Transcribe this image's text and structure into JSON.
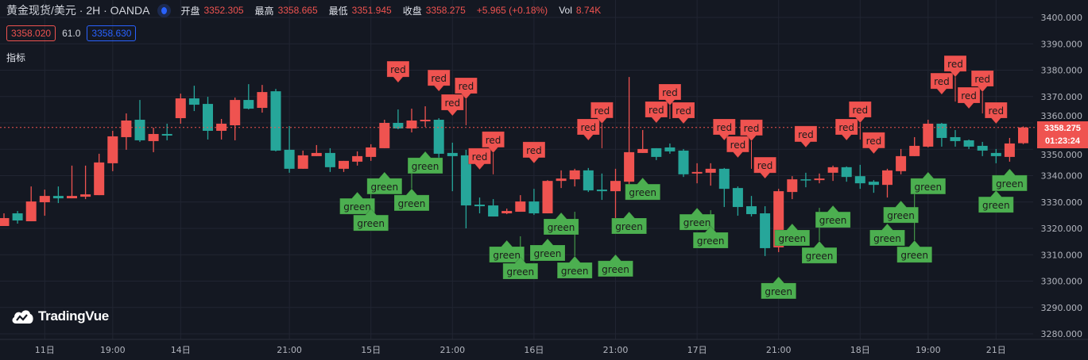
{
  "header": {
    "title": "黄金现货/美元 · 2H · OANDA",
    "open_label": "开盘",
    "open_value": "3352.305",
    "high_label": "最高",
    "high_value": "3358.665",
    "low_label": "最低",
    "low_value": "3351.945",
    "close_label": "收盘",
    "close_value": "3358.275",
    "change": "+5.965 (+0.18%)",
    "vol_label": "Vol",
    "vol_value": "8.74K"
  },
  "quote": {
    "bid": "3358.020",
    "spread": "61.0",
    "ask": "3358.630"
  },
  "indicators_label": "指标",
  "logo_text": "TradingVue",
  "price_tag": {
    "price": "3358.275",
    "countdown": "01:23:24"
  },
  "colors": {
    "up": "#ef5350",
    "down": "#26a69a",
    "buy_marker": "#4caf50",
    "sell_marker": "#ef5350",
    "background": "#141822",
    "grid": "#212532"
  },
  "chart_data": {
    "type": "candlestick",
    "title": "黄金现货/美元 · 2H · OANDA",
    "ylim": [
      3280,
      3400
    ],
    "y_ticks": [
      "3400.000",
      "3390.000",
      "3380.000",
      "3370.000",
      "3360.000",
      "3350.000",
      "3340.000",
      "3330.000",
      "3320.000",
      "3310.000",
      "3300.000",
      "3290.000",
      "3280.000"
    ],
    "y_tick_values": [
      3400,
      3390,
      3380,
      3370,
      3360,
      3350,
      3340,
      3330,
      3320,
      3310,
      3300,
      3290,
      3280
    ],
    "x_ticks": [
      {
        "index": 3,
        "label": "11日"
      },
      {
        "index": 8,
        "label": "19:00"
      },
      {
        "index": 13,
        "label": "14日"
      },
      {
        "index": 21,
        "label": "21:00"
      },
      {
        "index": 27,
        "label": "15日"
      },
      {
        "index": 33,
        "label": "21:00"
      },
      {
        "index": 39,
        "label": "16日"
      },
      {
        "index": 45,
        "label": "21:00"
      },
      {
        "index": 51,
        "label": "17日"
      },
      {
        "index": 57,
        "label": "21:00"
      },
      {
        "index": 63,
        "label": "18日"
      },
      {
        "index": 68,
        "label": "19:00"
      },
      {
        "index": 73,
        "label": "21日"
      }
    ],
    "last_price": 3358.275,
    "candles_ohlc": [
      [
        3320.9,
        3325.7,
        3320.9,
        3323.9
      ],
      [
        3325.7,
        3326.6,
        3321.8,
        3323.0
      ],
      [
        3322.7,
        3335.9,
        3322.7,
        3330.2
      ],
      [
        3329.9,
        3334.7,
        3324.8,
        3332.3
      ],
      [
        3332.3,
        3335.9,
        3329.6,
        3331.4
      ],
      [
        3331.4,
        3343.8,
        3331.4,
        3332.3
      ],
      [
        3332.0,
        3343.8,
        3331.1,
        3332.9
      ],
      [
        3332.6,
        3348.3,
        3332.6,
        3345.0
      ],
      [
        3344.7,
        3357.0,
        3341.7,
        3354.9
      ],
      [
        3354.6,
        3363.6,
        3349.8,
        3360.9
      ],
      [
        3361.2,
        3368.7,
        3352.8,
        3353.4
      ],
      [
        3353.1,
        3358.2,
        3348.9,
        3355.8
      ],
      [
        3355.8,
        3359.7,
        3353.4,
        3355.2
      ],
      [
        3361.8,
        3371.1,
        3359.7,
        3369.3
      ],
      [
        3369.3,
        3374.1,
        3364.5,
        3366.9
      ],
      [
        3367.2,
        3369.9,
        3353.7,
        3357.0
      ],
      [
        3357.0,
        3361.5,
        3353.7,
        3359.7
      ],
      [
        3359.1,
        3369.6,
        3353.4,
        3368.7
      ],
      [
        3368.7,
        3374.7,
        3365.1,
        3365.4
      ],
      [
        3365.7,
        3374.4,
        3363.9,
        3371.7
      ],
      [
        3372.0,
        3372.9,
        3349.2,
        3349.5
      ],
      [
        3349.8,
        3358.8,
        3341.1,
        3342.6
      ],
      [
        3342.6,
        3349.5,
        3342.6,
        3347.7
      ],
      [
        3347.4,
        3351.6,
        3347.4,
        3348.6
      ],
      [
        3348.6,
        3350.4,
        3341.4,
        3343.2
      ],
      [
        3342.6,
        3345.6,
        3341.4,
        3345.6
      ],
      [
        3345.3,
        3349.2,
        3343.8,
        3347.4
      ],
      [
        3347.1,
        3351.9,
        3345.6,
        3350.7
      ],
      [
        3350.4,
        3361.2,
        3350.4,
        3360.0
      ],
      [
        3360.0,
        3365.1,
        3357.6,
        3357.9
      ],
      [
        3357.9,
        3365.4,
        3356.4,
        3360.9
      ],
      [
        3360.6,
        3366.3,
        3358.5,
        3361.2
      ],
      [
        3361.2,
        3361.8,
        3346.8,
        3348.3
      ],
      [
        3348.6,
        3352.5,
        3334.1,
        3347.4
      ],
      [
        3347.7,
        3349.8,
        3320.0,
        3328.7
      ],
      [
        3329.0,
        3331.7,
        3325.7,
        3328.4
      ],
      [
        3328.7,
        3331.1,
        3324.5,
        3324.5
      ],
      [
        3325.7,
        3327.5,
        3325.4,
        3326.6
      ],
      [
        3326.3,
        3332.6,
        3326.3,
        3330.2
      ],
      [
        3330.2,
        3335.0,
        3325.1,
        3325.7
      ],
      [
        3325.7,
        3338.3,
        3325.7,
        3338.0
      ],
      [
        3338.0,
        3342.0,
        3335.3,
        3338.9
      ],
      [
        3338.6,
        3342.6,
        3335.9,
        3342.0
      ],
      [
        3342.0,
        3342.9,
        3333.8,
        3334.4
      ],
      [
        3334.7,
        3340.8,
        3330.8,
        3334.1
      ],
      [
        3334.1,
        3342.6,
        3320.3,
        3338.0
      ],
      [
        3337.7,
        3377.4,
        3335.9,
        3348.9
      ],
      [
        3348.6,
        3357.3,
        3348.6,
        3350.1
      ],
      [
        3350.4,
        3350.4,
        3345.9,
        3347.1
      ],
      [
        3350.7,
        3352.2,
        3348.3,
        3349.2
      ],
      [
        3349.5,
        3350.1,
        3339.5,
        3340.5
      ],
      [
        3340.8,
        3344.7,
        3337.1,
        3341.4
      ],
      [
        3341.1,
        3344.7,
        3336.2,
        3342.6
      ],
      [
        3342.6,
        3342.9,
        3328.1,
        3335.0
      ],
      [
        3335.3,
        3335.9,
        3324.8,
        3328.1
      ],
      [
        3328.4,
        3332.3,
        3324.5,
        3325.4
      ],
      [
        3325.7,
        3328.4,
        3309.5,
        3312.5
      ],
      [
        3312.8,
        3335.0,
        3311.0,
        3334.1
      ],
      [
        3333.8,
        3339.8,
        3331.1,
        3338.6
      ],
      [
        3338.6,
        3341.1,
        3335.6,
        3338.3
      ],
      [
        3338.3,
        3340.8,
        3337.1,
        3338.9
      ],
      [
        3341.1,
        3343.8,
        3338.0,
        3343.2
      ],
      [
        3343.2,
        3343.5,
        3337.7,
        3339.5
      ],
      [
        3339.8,
        3344.1,
        3335.0,
        3337.1
      ],
      [
        3337.7,
        3338.3,
        3333.5,
        3336.5
      ],
      [
        3336.5,
        3342.6,
        3331.7,
        3342.0
      ],
      [
        3341.7,
        3350.1,
        3340.5,
        3347.4
      ],
      [
        3347.4,
        3354.6,
        3347.4,
        3351.3
      ],
      [
        3351.0,
        3361.2,
        3350.7,
        3359.7
      ],
      [
        3359.7,
        3360.0,
        3351.0,
        3354.3
      ],
      [
        3354.6,
        3357.3,
        3351.0,
        3353.1
      ],
      [
        3353.4,
        3353.7,
        3350.1,
        3351.0
      ],
      [
        3351.3,
        3352.8,
        3347.4,
        3349.5
      ],
      [
        3348.6,
        3350.1,
        3344.7,
        3347.4
      ],
      [
        3347.1,
        3354.3,
        3345.3,
        3352.2
      ],
      [
        3352.305,
        3358.665,
        3351.945,
        3358.275
      ]
    ],
    "markers": [
      {
        "index": 29,
        "type": "red",
        "price": 3375.0
      },
      {
        "index": 32,
        "type": "red",
        "price": 3371.7
      },
      {
        "index": 33,
        "type": "red",
        "price": 3362.4
      },
      {
        "index": 34,
        "type": "red",
        "price": 3359.1
      },
      {
        "index": 35,
        "type": "red",
        "price": 3342.0
      },
      {
        "index": 36,
        "type": "red",
        "price": 3340.5
      },
      {
        "index": 39,
        "type": "red",
        "price": 3344.4
      },
      {
        "index": 43,
        "type": "red",
        "price": 3353.1
      },
      {
        "index": 44,
        "type": "red",
        "price": 3350.4
      },
      {
        "index": 48,
        "type": "red",
        "price": 3359.7
      },
      {
        "index": 49,
        "type": "red",
        "price": 3361.5
      },
      {
        "index": 50,
        "type": "red",
        "price": 3359.4
      },
      {
        "index": 53,
        "type": "red",
        "price": 3353.1
      },
      {
        "index": 54,
        "type": "red",
        "price": 3346.5
      },
      {
        "index": 55,
        "type": "red",
        "price": 3342.6
      },
      {
        "index": 56,
        "type": "red",
        "price": 3338.6
      },
      {
        "index": 59,
        "type": "red",
        "price": 3350.4
      },
      {
        "index": 62,
        "type": "red",
        "price": 3353.1
      },
      {
        "index": 63,
        "type": "red",
        "price": 3353.7
      },
      {
        "index": 64,
        "type": "red",
        "price": 3348.0
      },
      {
        "index": 69,
        "type": "red",
        "price": 3370.5
      },
      {
        "index": 70,
        "type": "red",
        "price": 3368.1
      },
      {
        "index": 71,
        "type": "red",
        "price": 3365.1
      },
      {
        "index": 72,
        "type": "red",
        "price": 3363.6
      },
      {
        "index": 73,
        "type": "red",
        "price": 3359.4
      },
      {
        "index": 26,
        "type": "green",
        "price": 3333.8
      },
      {
        "index": 27,
        "type": "green",
        "price": 3335.9
      },
      {
        "index": 28,
        "type": "green",
        "price": 3341.4
      },
      {
        "index": 30,
        "type": "green",
        "price": 3346.5
      },
      {
        "index": 31,
        "type": "green",
        "price": 3349.2
      },
      {
        "index": 37,
        "type": "green",
        "price": 3315.5
      },
      {
        "index": 38,
        "type": "green",
        "price": 3317.0
      },
      {
        "index": 40,
        "type": "green",
        "price": 3316.1
      },
      {
        "index": 41,
        "type": "green",
        "price": 3326.0
      },
      {
        "index": 42,
        "type": "green",
        "price": 3326.3
      },
      {
        "index": 45,
        "type": "green",
        "price": 3310.1
      },
      {
        "index": 46,
        "type": "green",
        "price": 3326.3
      },
      {
        "index": 47,
        "type": "green",
        "price": 3339.2
      },
      {
        "index": 51,
        "type": "green",
        "price": 3327.8
      },
      {
        "index": 52,
        "type": "green",
        "price": 3326.9
      },
      {
        "index": 57,
        "type": "green",
        "price": 3301.7
      },
      {
        "index": 58,
        "type": "green",
        "price": 3321.8
      },
      {
        "index": 60,
        "type": "green",
        "price": 3327.8
      },
      {
        "index": 61,
        "type": "green",
        "price": 3328.7
      },
      {
        "index": 65,
        "type": "green",
        "price": 3321.8
      },
      {
        "index": 66,
        "type": "green",
        "price": 3330.5
      },
      {
        "index": 67,
        "type": "green",
        "price": 3335.9
      },
      {
        "index": 68,
        "type": "green",
        "price": 3341.4
      },
      {
        "index": 73,
        "type": "green",
        "price": 3334.4
      },
      {
        "index": 74,
        "type": "green",
        "price": 3342.6
      }
    ],
    "marker_labels": {
      "red": "red",
      "green": "green"
    }
  }
}
